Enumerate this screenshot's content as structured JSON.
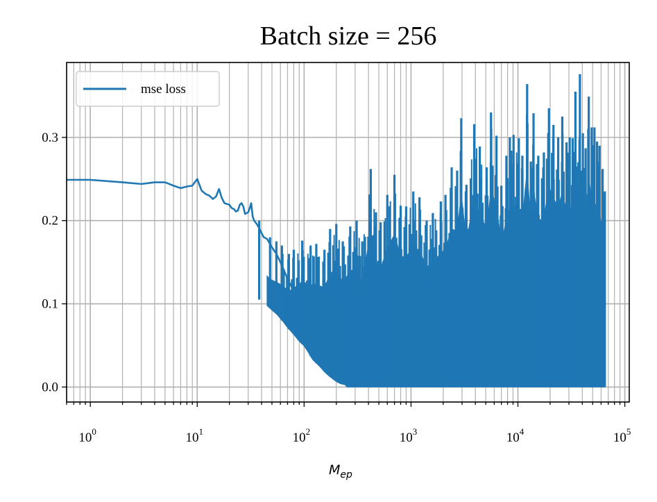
{
  "chart_data": {
    "type": "line",
    "title": "Batch size = 256",
    "xlabel": {
      "base": "M",
      "sub": "ep"
    },
    "ylabel": "",
    "xscale": "log",
    "xlim": [
      0.6,
      110000
    ],
    "ylim": [
      -0.018,
      0.39
    ],
    "grid": true,
    "grid_minor_x": true,
    "legend": {
      "location": "top-left",
      "entries": [
        "mse loss"
      ]
    },
    "x_ticks": [
      {
        "base": "10",
        "exp": "0",
        "value": 1
      },
      {
        "base": "10",
        "exp": "1",
        "value": 10
      },
      {
        "base": "10",
        "exp": "2",
        "value": 100
      },
      {
        "base": "10",
        "exp": "3",
        "value": 1000
      },
      {
        "base": "10",
        "exp": "4",
        "value": 10000
      },
      {
        "base": "10",
        "exp": "5",
        "value": 100000
      }
    ],
    "y_ticks": [
      {
        "label": "0.0",
        "value": 0.0
      },
      {
        "label": "0.1",
        "value": 0.1
      },
      {
        "label": "0.2",
        "value": 0.2
      },
      {
        "label": "0.3",
        "value": 0.3
      }
    ],
    "series": [
      {
        "name": "mse loss",
        "color": "#1f77b4",
        "early_x": [
          0.6,
          1,
          2,
          3,
          4,
          5,
          6,
          7,
          8,
          9,
          10,
          11,
          12,
          13,
          14,
          15,
          16,
          17,
          18,
          19,
          20,
          21,
          22,
          23,
          24,
          25,
          26,
          27,
          28,
          29,
          30,
          31,
          32,
          33,
          34,
          35,
          36,
          38,
          40,
          42,
          45,
          48,
          50,
          55,
          60,
          65,
          70,
          80,
          90,
          100,
          110,
          120,
          140,
          160,
          180,
          200,
          220,
          250
        ],
        "early_y": [
          0.249,
          0.249,
          0.246,
          0.244,
          0.246,
          0.246,
          0.242,
          0.239,
          0.241,
          0.242,
          0.25,
          0.236,
          0.232,
          0.23,
          0.226,
          0.229,
          0.238,
          0.227,
          0.221,
          0.22,
          0.219,
          0.215,
          0.214,
          0.211,
          0.212,
          0.219,
          0.221,
          0.217,
          0.208,
          0.209,
          0.21,
          0.215,
          0.221,
          0.205,
          0.2,
          0.198,
          0.196,
          0.191,
          0.185,
          0.18,
          0.178,
          0.172,
          0.168,
          0.16,
          0.15,
          0.14,
          0.13,
          0.115,
          0.1,
          0.09,
          0.075,
          0.06,
          0.045,
          0.03,
          0.02,
          0.012,
          0.007,
          0.004
        ],
        "spike_x": [
          38,
          48,
          55,
          62,
          72,
          80,
          96,
          115,
          130,
          155,
          175,
          200,
          230,
          270,
          310,
          350,
          420,
          470,
          520,
          600,
          700,
          800,
          900,
          1050,
          1200,
          1400,
          1600,
          1900,
          2100,
          2400,
          2700,
          2950,
          3300,
          3900,
          4400,
          5100,
          5600,
          6300,
          7000,
          7800,
          8400,
          9100,
          10200,
          11000,
          12200,
          13200,
          14000,
          15500,
          17500,
          19500,
          21500,
          23800,
          26000,
          28500,
          30500,
          32500,
          34500,
          36000,
          38000,
          40500,
          43000,
          46000,
          49000,
          52000,
          55000,
          58000,
          62000,
          65000
        ],
        "spike_y": [
          0.2,
          0.18,
          0.175,
          0.17,
          0.16,
          0.165,
          0.176,
          0.17,
          0.172,
          0.165,
          0.19,
          0.196,
          0.175,
          0.193,
          0.2,
          0.175,
          0.262,
          0.21,
          0.198,
          0.231,
          0.255,
          0.218,
          0.217,
          0.235,
          0.228,
          0.2,
          0.209,
          0.223,
          0.231,
          0.264,
          0.26,
          0.323,
          0.243,
          0.316,
          0.289,
          0.264,
          0.33,
          0.302,
          0.242,
          0.278,
          0.3,
          0.303,
          0.299,
          0.278,
          0.364,
          0.271,
          0.329,
          0.278,
          0.282,
          0.335,
          0.315,
          0.3,
          0.325,
          0.294,
          0.3,
          0.299,
          0.355,
          0.265,
          0.376,
          0.305,
          0.287,
          0.349,
          0.312,
          0.312,
          0.295,
          0.29,
          0.262,
          0.235
        ]
      }
    ]
  }
}
